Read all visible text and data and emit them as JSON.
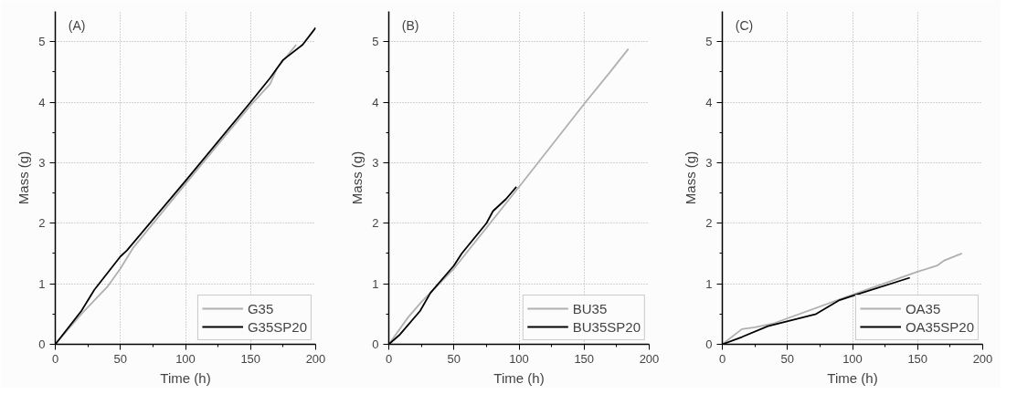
{
  "chart_data": [
    {
      "type": "line",
      "annotations": [
        "(A)"
      ],
      "xlabel": "Time (h)",
      "ylabel": "Mass (g)",
      "xlim": [
        0,
        200
      ],
      "ylim": [
        0,
        5.5
      ],
      "xticks": [
        0,
        50,
        100,
        150,
        200
      ],
      "yticks": [
        0,
        1,
        2,
        3,
        4,
        5
      ],
      "grid": true,
      "legend": "bottom right",
      "line_style": "solid",
      "series": [
        {
          "name": "G35",
          "color": "#b0b0b0",
          "x": [
            0,
            20,
            40,
            50,
            60,
            100,
            150,
            165,
            170,
            185
          ],
          "values": [
            0,
            0.5,
            0.95,
            1.25,
            1.6,
            2.65,
            3.95,
            4.3,
            4.55,
            4.95
          ]
        },
        {
          "name": "G35SP20",
          "color": "#000000",
          "x": [
            0,
            20,
            30,
            50,
            55,
            100,
            150,
            165,
            175,
            190,
            200
          ],
          "values": [
            0,
            0.55,
            0.9,
            1.45,
            1.55,
            2.7,
            4.0,
            4.4,
            4.7,
            4.95,
            5.23
          ]
        }
      ]
    },
    {
      "type": "line",
      "annotations": [
        "(B)"
      ],
      "xlabel": "Time (h)",
      "ylabel": "Mass (g)",
      "xlim": [
        0,
        200
      ],
      "ylim": [
        0,
        5.5
      ],
      "xticks": [
        0,
        50,
        100,
        150,
        200
      ],
      "yticks": [
        0,
        1,
        2,
        3,
        4,
        5
      ],
      "grid": true,
      "legend": "bottom right",
      "line_style": "solid",
      "series": [
        {
          "name": "BU35",
          "color": "#b0b0b0",
          "x": [
            0,
            15,
            25,
            50,
            100,
            150,
            170,
            184
          ],
          "values": [
            0,
            0.45,
            0.7,
            1.25,
            2.6,
            3.97,
            4.5,
            4.88
          ]
        },
        {
          "name": "BU35SP20",
          "color": "#000000",
          "x": [
            0,
            8,
            24,
            32,
            50,
            56,
            75,
            80,
            90,
            98
          ],
          "values": [
            0,
            0.15,
            0.55,
            0.85,
            1.3,
            1.5,
            2.0,
            2.2,
            2.4,
            2.6
          ]
        }
      ]
    },
    {
      "type": "line",
      "annotations": [
        "(C)"
      ],
      "xlabel": "Time (h)",
      "ylabel": "Mass (g)",
      "xlim": [
        0,
        200
      ],
      "ylim": [
        0,
        5.5
      ],
      "xticks": [
        0,
        50,
        100,
        150,
        200
      ],
      "yticks": [
        0,
        1,
        2,
        3,
        4,
        5
      ],
      "grid": true,
      "legend": "bottom right",
      "line_style": "solid",
      "series": [
        {
          "name": "OA35",
          "color": "#b0b0b0",
          "x": [
            0,
            15,
            25,
            40,
            100,
            150,
            165,
            170,
            184
          ],
          "values": [
            0,
            0.25,
            0.28,
            0.35,
            0.82,
            1.2,
            1.3,
            1.38,
            1.5
          ]
        },
        {
          "name": "OA35SP20",
          "color": "#000000",
          "x": [
            0,
            15,
            35,
            72,
            90,
            100,
            144
          ],
          "values": [
            0,
            0.12,
            0.3,
            0.5,
            0.73,
            0.8,
            1.1
          ]
        }
      ]
    }
  ]
}
